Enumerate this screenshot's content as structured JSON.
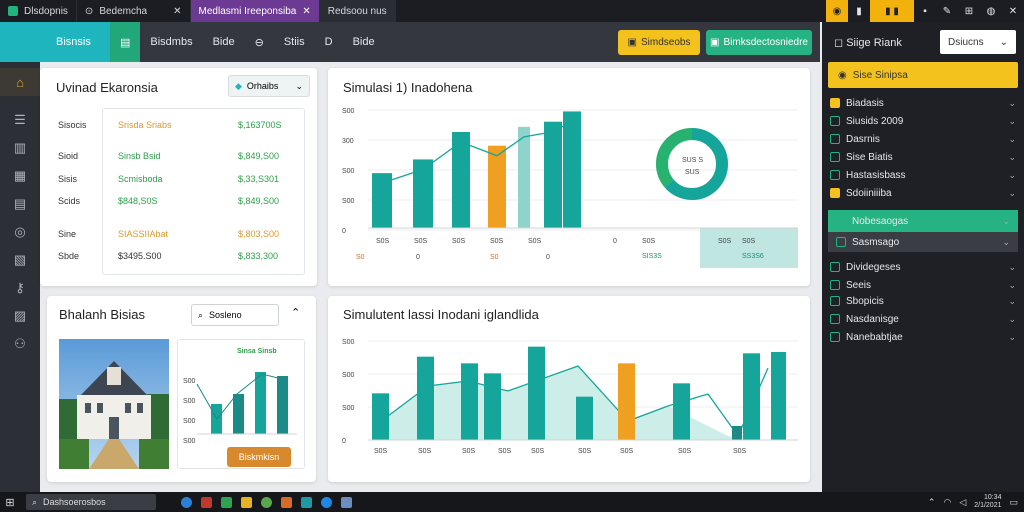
{
  "tabs": [
    {
      "label": "Dlsdopnis"
    },
    {
      "label": "Bedemcha"
    },
    {
      "label": "Medlasmi Ireeponsiba"
    },
    {
      "label": "Redsoou nus"
    }
  ],
  "topnav": {
    "brand": "Bisnsis",
    "items": [
      "Bisdmbs",
      "Bide",
      "Stiis",
      "Bide"
    ],
    "yellow_btn": "Simdseobs",
    "green_btn": "Bimksdectosniedre"
  },
  "card1": {
    "title": "Uvinad Ekaronsia",
    "dropdown": "Orhaibs",
    "rows": [
      {
        "k": "Sisocis",
        "name": "Srisda Sriabs",
        "val": "$,163700S"
      },
      {
        "k": "Sioid",
        "name": "Sinsb Bsid",
        "val": "$,849,S00"
      },
      {
        "k": "Sisis",
        "name": "Scmisboda",
        "val": "$,33,S301"
      },
      {
        "k": "Scids",
        "name": "$848,S0S",
        "val": "$,849,S00"
      },
      {
        "k": "Sine",
        "name": "SIASSIIAbat",
        "val": "$,803,S00"
      },
      {
        "k": "Sbde",
        "name": "$3495.S00",
        "val": "$,833,300"
      }
    ]
  },
  "card2": {
    "title": "Simulasi 1) Inadohena",
    "yticks": [
      "S00",
      "300",
      "S00",
      "S00",
      "0"
    ],
    "xticks": [
      "S0S",
      "S0S",
      "S0S",
      "S0S",
      "S0S"
    ],
    "foot": [
      "S0",
      "0",
      "S0",
      "0"
    ],
    "donut": {
      "l1": "SUS S",
      "l2": "SUS"
    },
    "tbl": [
      "0",
      "S0S",
      "SIS3S",
      "S0S",
      "S0S",
      "SS3S6"
    ]
  },
  "chart_data": [
    {
      "type": "bar",
      "title": "Simulasi 1) Inadohena",
      "categories": [
        "S0S",
        "S0S",
        "S0S",
        "S0S",
        "S0S",
        "",
        ""
      ],
      "series": [
        {
          "values": [
            320,
            400,
            560,
            480,
            590,
            620,
            680
          ]
        }
      ]
    },
    {
      "type": "bar",
      "title": "Simulutent lassi Inodani iglandlida",
      "categories": [
        "S0S",
        "S0S",
        "S0S",
        "S0S",
        "S0S",
        "S0S",
        "S0S",
        "S0S",
        "S0S"
      ],
      "series": [
        {
          "values": [
            140,
            250,
            230,
            200,
            280,
            130,
            230,
            170,
            260
          ]
        }
      ]
    }
  ],
  "card3": {
    "title": "Bhalanh Bisias",
    "search": "Sosleno",
    "mini_title": "Sinsa Sinsb",
    "mini_ticks": [
      "S00",
      "S00",
      "S00",
      "S00"
    ],
    "btn": "Biskmkisn"
  },
  "card4": {
    "title": "Simulutent lassi Inodani iglandlida",
    "yticks": [
      "S00",
      "S00",
      "S00",
      "0"
    ],
    "xticks": [
      "S0S",
      "S0S",
      "S0S",
      "S0S",
      "S0S",
      "S0S",
      "S0S",
      "S0S",
      "S0S"
    ]
  },
  "rpanel": {
    "title": "Siige Riank",
    "select": "Dsiucns",
    "hl": "Sise Sinipsa",
    "items": [
      "Biadasis",
      "Siusids 2009",
      "Dasrnis",
      "Sise Biatis",
      "Hastasisbass",
      "Sdoiiniiiba",
      "Nobesaogas",
      "Sasmsago",
      "Dividegeses",
      "Seeis",
      "Sbopicis",
      "Nasdanisge",
      "Nanebabtjae"
    ]
  },
  "taskbar": {
    "search": "Dashsoerosbos",
    "time": "10:34",
    "date": "2/1/2021"
  }
}
